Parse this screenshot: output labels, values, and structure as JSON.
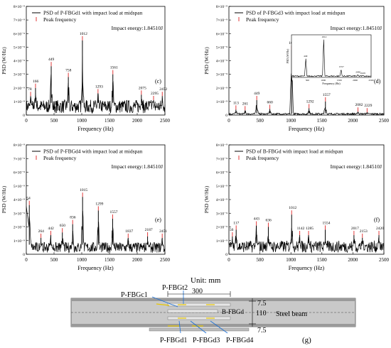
{
  "chart_data": [
    {
      "type": "line",
      "legend": [
        "PSD of P-FBGd1 with impact load at midspan",
        "Peak frequency"
      ],
      "annotation": "Impact energy:1.84510J",
      "panel_label": "(c)",
      "xlabel": "Frequency (Hz)",
      "ylabel": "PSD (W/Hz)",
      "xlim": [
        0,
        2500
      ],
      "ylim": [
        0,
        8e-09
      ],
      "x_ticks": [
        "0",
        "500",
        "1000",
        "1500",
        "2000",
        "2500"
      ],
      "y_ticks": [
        "0",
        "1×10⁻⁹",
        "2×10⁻⁹",
        "3×10⁻⁹",
        "4×10⁻⁹",
        "5×10⁻⁹",
        "6×10⁻⁹",
        "7×10⁻⁹",
        "8×10⁻⁹"
      ],
      "baseline": 9e-10,
      "peaks": [
        {
          "f": 78,
          "psd": 1.4e-09,
          "label": "78"
        },
        {
          "f": 166,
          "psd": 2e-09,
          "label": "166"
        },
        {
          "f": 449,
          "psd": 3.6e-09,
          "label": "449"
        },
        {
          "f": 758,
          "psd": 2.8e-09,
          "label": "758"
        },
        {
          "f": 1012,
          "psd": 5.5e-09,
          "label": "1012"
        },
        {
          "f": 1293,
          "psd": 1.6e-09,
          "label": "1293"
        },
        {
          "f": 1561,
          "psd": 3e-09,
          "label": "1561"
        },
        {
          "f": 2075,
          "psd": 1.5e-09,
          "label": "2075"
        },
        {
          "f": 2295,
          "psd": 1.1e-09,
          "label": "2295"
        },
        {
          "f": 2452,
          "psd": 1.4e-09,
          "label": "2452"
        }
      ]
    },
    {
      "type": "line",
      "legend": [
        "PSD of P-FBGd3 with impact load at midspan",
        "Peak frequency"
      ],
      "annotation": "Impact energy:1.84510J",
      "panel_label": "(d)",
      "xlabel": "Frequency (Hz)",
      "ylabel": "PSD (W/Hz)",
      "xlim": [
        0,
        2500
      ],
      "ylim": [
        0,
        8e-09
      ],
      "x_ticks": [
        "0",
        "500",
        "1000",
        "1500",
        "2000",
        "2500"
      ],
      "y_ticks": [
        "0",
        "1×10⁻⁹",
        "2×10⁻⁹",
        "3×10⁻⁹",
        "4×10⁻⁹",
        "5×10⁻⁹",
        "6×10⁻⁹",
        "7×10⁻⁹",
        "8×10⁻⁹"
      ],
      "baseline": 1.2e-10,
      "peaks": [
        {
          "f": 113,
          "psd": 4e-10,
          "label": "113"
        },
        {
          "f": 261,
          "psd": 3.5e-10,
          "label": "261"
        },
        {
          "f": 449,
          "psd": 1.1e-09,
          "label": "449"
        },
        {
          "f": 660,
          "psd": 4.5e-10,
          "label": "660"
        },
        {
          "f": 1012,
          "psd": 4.8e-09,
          "label": "1012"
        },
        {
          "f": 1292,
          "psd": 5e-10,
          "label": "1292"
        },
        {
          "f": 1557,
          "psd": 1e-09,
          "label": "1557"
        },
        {
          "f": 2082,
          "psd": 2.5e-10,
          "label": "2082"
        },
        {
          "f": 2229,
          "psd": 2e-10,
          "label": "2229"
        }
      ],
      "inset": {
        "xlabel": "Frequency (Hz)",
        "ylabel": "PSD (W/Hz)",
        "xlim": [
          0,
          2500
        ],
        "x_ticks": [
          "0",
          "500",
          "1000",
          "1500",
          "2000",
          "2500"
        ],
        "peaks": [
          {
            "f": 449,
            "psd": 0.5,
            "label": "449"
          },
          {
            "f": 1012,
            "psd": 1.0,
            "label": "1012"
          },
          {
            "f": 1557,
            "psd": 0.22,
            "label": "1557"
          },
          {
            "f": 2082,
            "psd": 0.08,
            "label": "2082"
          },
          {
            "f": 2229,
            "psd": 0.06,
            "label": "2229"
          }
        ]
      }
    },
    {
      "type": "line",
      "legend": [
        "PSD of P-FBGd4 with impact load at midspan",
        "Peak frequency"
      ],
      "annotation": "Impact energy:1.84510J",
      "panel_label": "(e)",
      "xlabel": "Frequency (Hz)",
      "ylabel": "PSD (W/Hz)",
      "xlim": [
        0,
        2500
      ],
      "ylim": [
        0,
        8e-09
      ],
      "x_ticks": [
        "0",
        "500",
        "1000",
        "1500",
        "2000",
        "2500"
      ],
      "y_ticks": [
        "0",
        "1×10⁻⁹",
        "2×10⁻⁹",
        "3×10⁻⁹",
        "4×10⁻⁹",
        "5×10⁻⁹",
        "6×10⁻⁹",
        "7×10⁻⁹",
        "8×10⁻⁹"
      ],
      "baseline": 7e-10,
      "peaks": [
        {
          "f": 54,
          "psd": 3.6e-09,
          "label": "54"
        },
        {
          "f": 264,
          "psd": 1.2e-09,
          "label": "264"
        },
        {
          "f": 442,
          "psd": 1.4e-09,
          "label": "442"
        },
        {
          "f": 650,
          "psd": 1.6e-09,
          "label": "650"
        },
        {
          "f": 836,
          "psd": 2.2e-09,
          "label": "836"
        },
        {
          "f": 1015,
          "psd": 4.2e-09,
          "label": "1015"
        },
        {
          "f": 1299,
          "psd": 3.2e-09,
          "label": "1299"
        },
        {
          "f": 1557,
          "psd": 2.6e-09,
          "label": "1557"
        },
        {
          "f": 1837,
          "psd": 1.2e-09,
          "label": "1837"
        },
        {
          "f": 2187,
          "psd": 1.3e-09,
          "label": "2187"
        },
        {
          "f": 2451,
          "psd": 1.2e-09,
          "label": "2451"
        }
      ]
    },
    {
      "type": "line",
      "legend": [
        "PSD of B-FBGd with impact load at midspan",
        "Peak frequency"
      ],
      "annotation": "Impact energy:1.84510J",
      "panel_label": "(f)",
      "xlabel": "Frequency (Hz)",
      "ylabel": "PSD (W/Hz)",
      "xlim": [
        0,
        2500
      ],
      "ylim": [
        0,
        8e-09
      ],
      "x_ticks": [
        "0",
        "500",
        "1000",
        "1500",
        "2000",
        "2500"
      ],
      "y_ticks": [
        "0",
        "1×10⁻⁹",
        "2×10⁻⁹",
        "3×10⁻⁹",
        "4×10⁻⁹",
        "5×10⁻⁹",
        "6×10⁻⁹",
        "7×10⁻⁹",
        "8×10⁻⁹"
      ],
      "baseline": 8e-10,
      "peaks": [
        {
          "f": 56,
          "psd": 1.3e-09,
          "label": "56"
        },
        {
          "f": 117,
          "psd": 1.8e-09,
          "label": "117"
        },
        {
          "f": 443,
          "psd": 2.1e-09,
          "label": "443"
        },
        {
          "f": 636,
          "psd": 2e-09,
          "label": "636"
        },
        {
          "f": 1012,
          "psd": 2.9e-09,
          "label": "1012"
        },
        {
          "f": 1142,
          "psd": 1.4e-09,
          "label": "1142"
        },
        {
          "f": 1285,
          "psd": 1.4e-09,
          "label": "1285"
        },
        {
          "f": 1554,
          "psd": 1.8e-09,
          "label": "1554"
        },
        {
          "f": 2017,
          "psd": 1.4e-09,
          "label": "2017"
        },
        {
          "f": 2153,
          "psd": 1.2e-09,
          "label": "2153"
        },
        {
          "f": 2420,
          "psd": 1.4e-09,
          "label": "2420"
        }
      ]
    }
  ],
  "diagram": {
    "unit": "Unit: mm",
    "dim_300": "300",
    "dim_75_top": "7.5",
    "dim_110": "110",
    "dim_75_bottom": "7.5",
    "label_steel_beam": "Steel beam",
    "label_bfbgd": "B-FBGd",
    "label_pfbgt2": "P-FBGt2",
    "label_pfbgc1": "P-FBGc1",
    "label_pfbgd1": "P-FBGd1",
    "label_pfbgd3": "P-FBGd3",
    "label_pfbgd4": "P-FBGd4",
    "panel_label": "(g)"
  }
}
